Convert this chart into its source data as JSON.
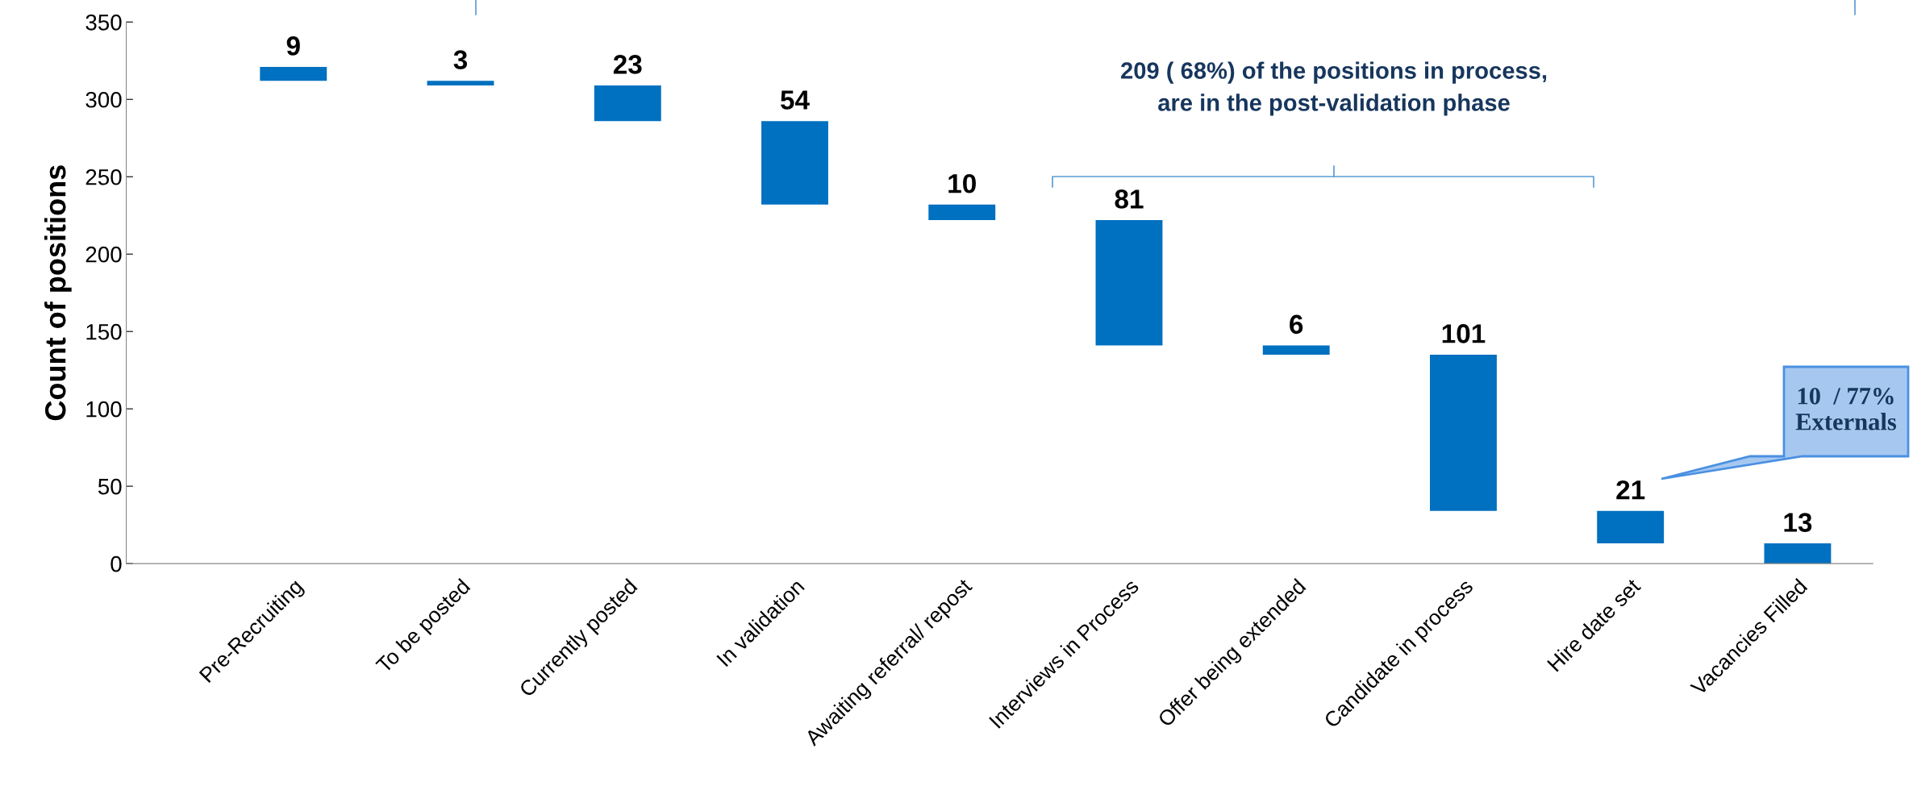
{
  "chart_data": {
    "type": "bar",
    "ylabel": "Count of positions",
    "categories": [
      "Pre-Recruiting",
      "To be posted",
      "Currently posted",
      "In validation",
      "Awaiting referral/ repost",
      "Interviews in Process",
      "Offer being extended",
      "Candidate in process",
      "Hire date set",
      "Vacancies Filled"
    ],
    "values": [
      9,
      3,
      23,
      54,
      10,
      81,
      6,
      101,
      21,
      13
    ],
    "base": [
      312,
      309,
      286,
      232,
      222,
      141,
      135,
      34,
      13,
      0
    ],
    "color": "#0070c0",
    "data_labels": true,
    "ylim": [
      0,
      350
    ],
    "yticks": [
      0,
      50,
      100,
      150,
      200,
      250,
      300,
      350
    ],
    "grid": false,
    "legend": false,
    "annotations": [
      "209 ( 68%) of the positions in process,\nare in the post-validation phase",
      "10  / 77%\nExternals"
    ]
  }
}
